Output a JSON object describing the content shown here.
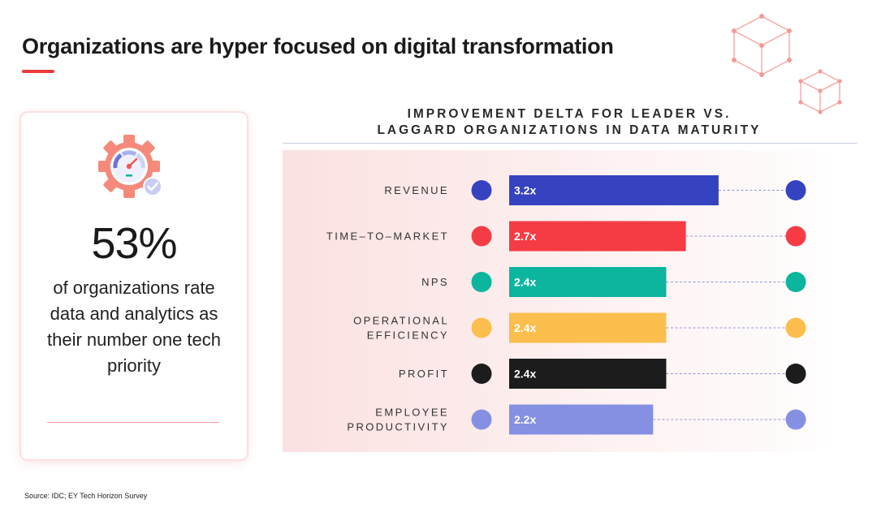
{
  "page": {
    "title": "Organizations are hyper focused on digital transformation",
    "source": "Source: IDC; EY Tech Horizon Survey"
  },
  "stat_card": {
    "value": "53%",
    "description": "of organizations rate data and analytics as their number one tech priority",
    "icon": "gear-gauge-check-icon"
  },
  "colors": {
    "accent_red": "#ec3b3b",
    "revenue": "#3543c0",
    "time_to_market": "#f53c44",
    "nps": "#0bb59e",
    "operational_efficiency": "#fcbf4d",
    "profit": "#1c1c1c",
    "employee_productivity": "#8690e3"
  },
  "chart_data": {
    "type": "bar",
    "orientation": "horizontal",
    "title_lines": [
      "IMPROVEMENT DELTA FOR LEADER VS.",
      "LAGGARD ORGANIZATIONS IN DATA MATURITY"
    ],
    "categories": [
      [
        "REVENUE"
      ],
      [
        "TIME–TO–MARKET"
      ],
      [
        "NPS"
      ],
      [
        "OPERATIONAL",
        "EFFICIENCY"
      ],
      [
        "PROFIT"
      ],
      [
        "EMPLOYEE",
        "PRODUCTIVITY"
      ]
    ],
    "values": [
      3.2,
      2.7,
      2.4,
      2.4,
      2.4,
      2.2
    ],
    "value_labels": [
      "3.2x",
      "2.7x",
      "2.4x",
      "2.4x",
      "2.4x",
      "2.2x"
    ],
    "colors": [
      "#3543c0",
      "#f53c44",
      "#0bb59e",
      "#fcbf4d",
      "#1c1c1c",
      "#8690e3"
    ],
    "xlim": [
      0,
      5.0
    ]
  }
}
